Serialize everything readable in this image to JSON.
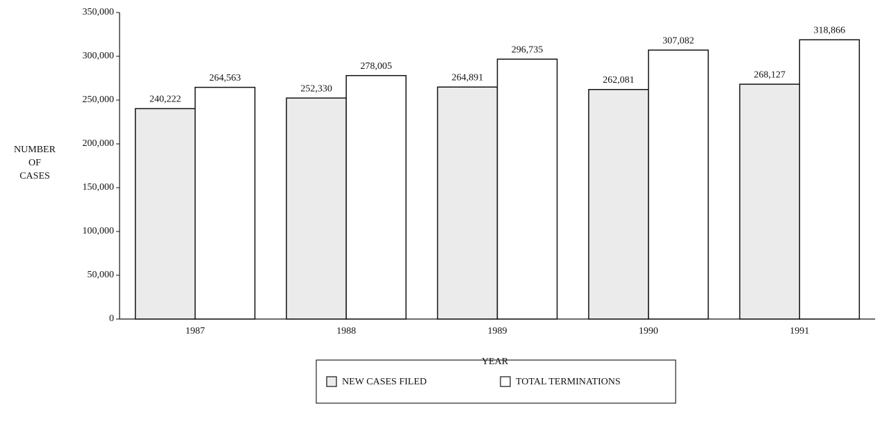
{
  "chart_data": {
    "type": "bar",
    "y_label": [
      "NUMBER",
      "OF",
      "CASES"
    ],
    "x_label": "YEAR",
    "categories": [
      "1987",
      "1988",
      "1989",
      "1990",
      "1991"
    ],
    "series": [
      {
        "name": "NEW CASES FILED",
        "color": "#ebebeb",
        "values": [
          240222,
          252330,
          264891,
          262081,
          268127
        ],
        "value_labels": [
          "240,222",
          "252,330",
          "264,891",
          "262,081",
          "268,127"
        ]
      },
      {
        "name": "TOTAL TERMINATIONS",
        "color": "#ffffff",
        "values": [
          264563,
          278005,
          296735,
          307082,
          318866
        ],
        "value_labels": [
          "264,563",
          "278,005",
          "296,735",
          "307,082",
          "318,866"
        ]
      }
    ],
    "ylim": [
      0,
      350000
    ],
    "yticks": [
      0,
      {
        "value": 50000,
        "label": "50,000"
      },
      {
        "value": 100000,
        "label": "100,000"
      },
      {
        "value": 150000,
        "label": "150,000"
      },
      {
        "value": 200000,
        "label": "200,000"
      },
      {
        "value": 250000,
        "label": "250,000"
      },
      {
        "value": 300000,
        "label": "300,000"
      },
      {
        "value": 350000,
        "label": "350,000"
      }
    ],
    "legend": "bottom"
  }
}
